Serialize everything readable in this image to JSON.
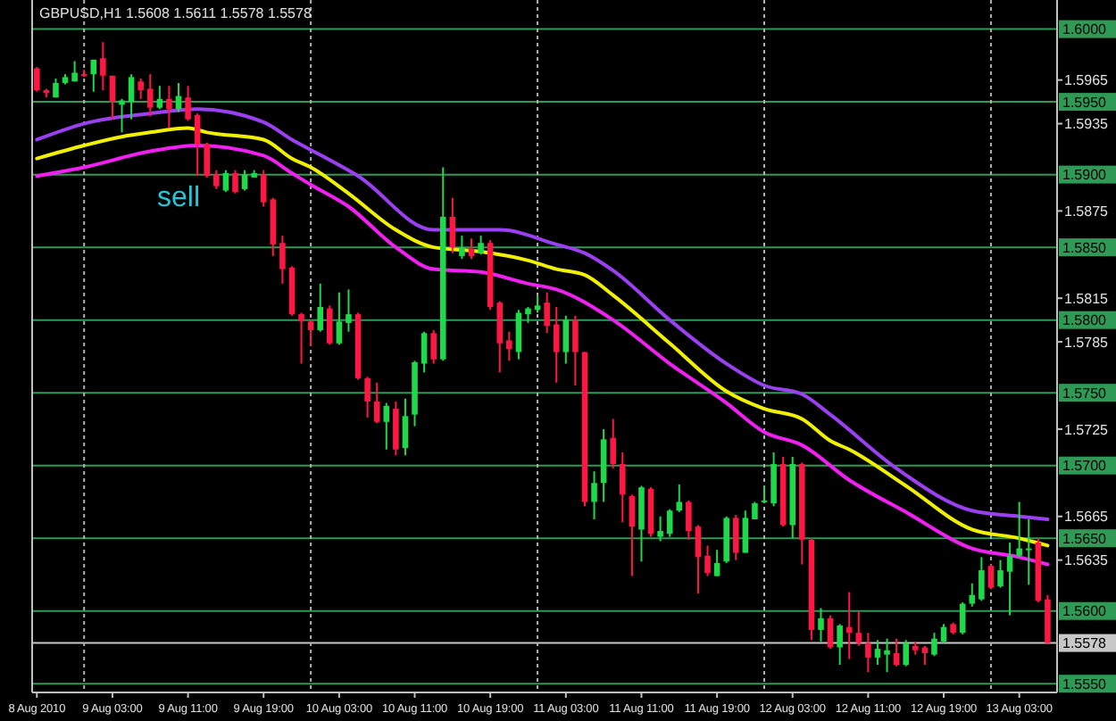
{
  "chart_data": {
    "type": "candlestick",
    "title": "GBPUSD,H1  1.5608 1.5611 1.5578 1.5578",
    "x": [
      "2010-08-08T19:00",
      "2010-08-08T20:00",
      "2010-08-08T21:00",
      "2010-08-08T22:00",
      "2010-08-08T23:00",
      "2010-08-09T00:00",
      "2010-08-09T01:00",
      "2010-08-09T02:00",
      "2010-08-09T03:00",
      "2010-08-09T04:00",
      "2010-08-09T05:00",
      "2010-08-09T06:00",
      "2010-08-09T07:00",
      "2010-08-09T08:00",
      "2010-08-09T09:00",
      "2010-08-09T10:00",
      "2010-08-09T11:00",
      "2010-08-09T12:00",
      "2010-08-09T13:00",
      "2010-08-09T14:00",
      "2010-08-09T15:00",
      "2010-08-09T16:00",
      "2010-08-09T17:00",
      "2010-08-09T18:00",
      "2010-08-09T19:00",
      "2010-08-09T20:00",
      "2010-08-09T21:00",
      "2010-08-09T22:00",
      "2010-08-09T23:00",
      "2010-08-10T00:00",
      "2010-08-10T01:00",
      "2010-08-10T02:00",
      "2010-08-10T03:00",
      "2010-08-10T04:00",
      "2010-08-10T05:00",
      "2010-08-10T06:00",
      "2010-08-10T07:00",
      "2010-08-10T08:00",
      "2010-08-10T09:00",
      "2010-08-10T10:00",
      "2010-08-10T11:00",
      "2010-08-10T12:00",
      "2010-08-10T13:00",
      "2010-08-10T14:00",
      "2010-08-10T15:00",
      "2010-08-10T16:00",
      "2010-08-10T17:00",
      "2010-08-10T18:00",
      "2010-08-10T19:00",
      "2010-08-10T20:00",
      "2010-08-10T21:00",
      "2010-08-10T22:00",
      "2010-08-10T23:00",
      "2010-08-11T00:00",
      "2010-08-11T01:00",
      "2010-08-11T02:00",
      "2010-08-11T03:00",
      "2010-08-11T04:00",
      "2010-08-11T05:00",
      "2010-08-11T06:00",
      "2010-08-11T07:00",
      "2010-08-11T08:00",
      "2010-08-11T09:00",
      "2010-08-11T10:00",
      "2010-08-11T11:00",
      "2010-08-11T12:00",
      "2010-08-11T13:00",
      "2010-08-11T14:00",
      "2010-08-11T15:00",
      "2010-08-11T16:00",
      "2010-08-11T17:00",
      "2010-08-11T18:00",
      "2010-08-11T19:00",
      "2010-08-11T20:00",
      "2010-08-11T21:00",
      "2010-08-11T22:00",
      "2010-08-11T23:00",
      "2010-08-12T00:00",
      "2010-08-12T01:00",
      "2010-08-12T02:00",
      "2010-08-12T03:00",
      "2010-08-12T04:00",
      "2010-08-12T05:00",
      "2010-08-12T06:00",
      "2010-08-12T07:00",
      "2010-08-12T08:00",
      "2010-08-12T09:00",
      "2010-08-12T10:00",
      "2010-08-12T11:00",
      "2010-08-12T12:00",
      "2010-08-12T13:00",
      "2010-08-12T14:00",
      "2010-08-12T15:00",
      "2010-08-12T16:00",
      "2010-08-12T17:00",
      "2010-08-12T18:00",
      "2010-08-12T19:00",
      "2010-08-12T20:00",
      "2010-08-12T21:00",
      "2010-08-12T22:00",
      "2010-08-12T23:00",
      "2010-08-13T00:00",
      "2010-08-13T01:00",
      "2010-08-13T02:00",
      "2010-08-13T03:00",
      "2010-08-13T04:00",
      "2010-08-13T05:00",
      "2010-08-13T06:00"
    ],
    "ohlc": [
      [
        1.5973,
        1.5974,
        1.5957,
        1.5958
      ],
      [
        1.5958,
        1.5959,
        1.5953,
        1.5956
      ],
      [
        1.5953,
        1.5966,
        1.5953,
        1.5963
      ],
      [
        1.5963,
        1.5969,
        1.5962,
        1.5967
      ],
      [
        1.5964,
        1.5978,
        1.5964,
        1.597
      ],
      [
        1.5969,
        1.5972,
        1.5967,
        1.5968
      ],
      [
        1.5969,
        1.5979,
        1.5957,
        1.5979
      ],
      [
        1.598,
        1.5991,
        1.5958,
        1.5968
      ],
      [
        1.5968,
        1.5968,
        1.5938,
        1.595
      ],
      [
        1.5948,
        1.5952,
        1.5929,
        1.5951
      ],
      [
        1.595,
        1.5969,
        1.5938,
        1.5967
      ],
      [
        1.5964,
        1.5966,
        1.5952,
        1.5958
      ],
      [
        1.5959,
        1.5969,
        1.594,
        1.5946
      ],
      [
        1.5946,
        1.5961,
        1.5945,
        1.5952
      ],
      [
        1.5952,
        1.5961,
        1.5932,
        1.5945
      ],
      [
        1.5945,
        1.5963,
        1.5943,
        1.5954
      ],
      [
        1.5953,
        1.5961,
        1.5937,
        1.5938
      ],
      [
        1.5941,
        1.5942,
        1.5899,
        1.5921
      ],
      [
        1.5921,
        1.5922,
        1.5898,
        1.5899
      ],
      [
        1.59,
        1.5903,
        1.589,
        1.5892
      ],
      [
        1.5889,
        1.5903,
        1.5888,
        1.5901
      ],
      [
        1.5901,
        1.5903,
        1.5887,
        1.5888
      ],
      [
        1.589,
        1.5903,
        1.5889,
        1.59
      ],
      [
        1.5898,
        1.5903,
        1.5898,
        1.5901
      ],
      [
        1.59,
        1.5903,
        1.5878,
        1.5881
      ],
      [
        1.5883,
        1.5884,
        1.5844,
        1.5852
      ],
      [
        1.5853,
        1.5858,
        1.5825,
        1.5835
      ],
      [
        1.5836,
        1.5837,
        1.5803,
        1.5804
      ],
      [
        1.5804,
        1.5805,
        1.577,
        1.5799
      ],
      [
        1.5799,
        1.58,
        1.5782,
        1.5793
      ],
      [
        1.5793,
        1.5825,
        1.5792,
        1.5809
      ],
      [
        1.5808,
        1.581,
        1.5783,
        1.5784
      ],
      [
        1.5784,
        1.5819,
        1.5783,
        1.5799
      ],
      [
        1.5798,
        1.5821,
        1.5792,
        1.5804
      ],
      [
        1.5804,
        1.5805,
        1.5759,
        1.576
      ],
      [
        1.576,
        1.5761,
        1.5733,
        1.5744
      ],
      [
        1.5744,
        1.5757,
        1.5729,
        1.573
      ],
      [
        1.573,
        1.5743,
        1.5711,
        1.5741
      ],
      [
        1.5739,
        1.5744,
        1.5707,
        1.5711
      ],
      [
        1.5712,
        1.5746,
        1.5707,
        1.5734
      ],
      [
        1.5735,
        1.5772,
        1.5727,
        1.5771
      ],
      [
        1.577,
        1.5792,
        1.5764,
        1.5791
      ],
      [
        1.5791,
        1.5793,
        1.577,
        1.5773
      ],
      [
        1.5773,
        1.5905,
        1.5772,
        1.5871
      ],
      [
        1.5871,
        1.5884,
        1.5846,
        1.585
      ],
      [
        1.5844,
        1.5858,
        1.5842,
        1.585
      ],
      [
        1.5849,
        1.5856,
        1.5842,
        1.5844
      ],
      [
        1.5846,
        1.5858,
        1.5845,
        1.5853
      ],
      [
        1.5853,
        1.5855,
        1.5807,
        1.5809
      ],
      [
        1.5812,
        1.5813,
        1.5764,
        1.5784
      ],
      [
        1.5786,
        1.5792,
        1.5772,
        1.578
      ],
      [
        1.5778,
        1.5807,
        1.5773,
        1.5805
      ],
      [
        1.5804,
        1.5809,
        1.5798,
        1.5808
      ],
      [
        1.5807,
        1.5817,
        1.5805,
        1.581
      ],
      [
        1.5812,
        1.5819,
        1.5791,
        1.5796
      ],
      [
        1.5797,
        1.5809,
        1.5757,
        1.5778
      ],
      [
        1.5778,
        1.5803,
        1.577,
        1.58
      ],
      [
        1.58,
        1.5803,
        1.5755,
        1.5778
      ],
      [
        1.5778,
        1.5778,
        1.5672,
        1.5675
      ],
      [
        1.5675,
        1.5696,
        1.5663,
        1.5688
      ],
      [
        1.5688,
        1.5725,
        1.5675,
        1.5718
      ],
      [
        1.5719,
        1.5732,
        1.5698,
        1.5701
      ],
      [
        1.5701,
        1.5709,
        1.5661,
        1.568
      ],
      [
        1.5679,
        1.568,
        1.5624,
        1.5658
      ],
      [
        1.5656,
        1.5686,
        1.5634,
        1.5685
      ],
      [
        1.5684,
        1.5685,
        1.5651,
        1.5653
      ],
      [
        1.5651,
        1.5665,
        1.5648,
        1.5655
      ],
      [
        1.5653,
        1.567,
        1.5651,
        1.5669
      ],
      [
        1.5669,
        1.5687,
        1.5668,
        1.5675
      ],
      [
        1.5675,
        1.5676,
        1.5649,
        1.5655
      ],
      [
        1.5658,
        1.5659,
        1.5612,
        1.5637
      ],
      [
        1.5638,
        1.5645,
        1.5624,
        1.5626
      ],
      [
        1.5624,
        1.5642,
        1.5624,
        1.5633
      ],
      [
        1.5634,
        1.5665,
        1.5633,
        1.5664
      ],
      [
        1.5664,
        1.5666,
        1.5635,
        1.564
      ],
      [
        1.564,
        1.5669,
        1.564,
        1.5664
      ],
      [
        1.5663,
        1.5675,
        1.5663,
        1.5674
      ],
      [
        1.5675,
        1.5686,
        1.5674,
        1.5676
      ],
      [
        1.5674,
        1.5709,
        1.5672,
        1.5701
      ],
      [
        1.5701,
        1.5706,
        1.5658,
        1.5659
      ],
      [
        1.5659,
        1.5706,
        1.565,
        1.5701
      ],
      [
        1.5701,
        1.5702,
        1.5632,
        1.5649
      ],
      [
        1.5649,
        1.565,
        1.558,
        1.5587
      ],
      [
        1.5587,
        1.5602,
        1.5579,
        1.5595
      ],
      [
        1.5595,
        1.5597,
        1.5574,
        1.5575
      ],
      [
        1.5575,
        1.5591,
        1.5563,
        1.559
      ],
      [
        1.5589,
        1.5613,
        1.5567,
        1.5585
      ],
      [
        1.5585,
        1.56,
        1.5576,
        1.5578
      ],
      [
        1.5578,
        1.5585,
        1.5558,
        1.5568
      ],
      [
        1.5568,
        1.558,
        1.5563,
        1.5574
      ],
      [
        1.557,
        1.5581,
        1.5558,
        1.5573
      ],
      [
        1.5571,
        1.5581,
        1.5562,
        1.5563
      ],
      [
        1.5563,
        1.558,
        1.5562,
        1.5578
      ],
      [
        1.5576,
        1.5579,
        1.557,
        1.5573
      ],
      [
        1.5575,
        1.5576,
        1.5563,
        1.5571
      ],
      [
        1.557,
        1.5585,
        1.5569,
        1.5581
      ],
      [
        1.5579,
        1.5591,
        1.5578,
        1.5589
      ],
      [
        1.5591,
        1.5592,
        1.5584,
        1.5585
      ],
      [
        1.5585,
        1.5606,
        1.5584,
        1.5605
      ],
      [
        1.5605,
        1.5619,
        1.5603,
        1.5611
      ],
      [
        1.5608,
        1.5637,
        1.5607,
        1.5628
      ],
      [
        1.5631,
        1.5632,
        1.5615,
        1.5616
      ],
      [
        1.5617,
        1.5635,
        1.5616,
        1.5628
      ],
      [
        1.5627,
        1.5647,
        1.5597,
        1.5638
      ],
      [
        1.5638,
        1.5675,
        1.5637,
        1.5643
      ],
      [
        1.5642,
        1.5663,
        1.5618,
        1.5643
      ],
      [
        1.5647,
        1.565,
        1.5606,
        1.5607
      ],
      [
        1.5608,
        1.5611,
        1.5578,
        1.5578
      ]
    ],
    "colors": [
      "#ff1744",
      "#ff1744",
      "#1ed94a",
      "#1ed94a",
      "#1ed94a",
      "#ff1744",
      "#1ed94a",
      "#ff1744",
      "#ff1744",
      "#1ed94a",
      "#1ed94a",
      "#ff1744",
      "#ff1744",
      "#1ed94a",
      "#ff1744",
      "#1ed94a",
      "#ff1744",
      "#ff1744",
      "#ff1744",
      "#ff1744",
      "#1ed94a",
      "#ff1744",
      "#1ed94a",
      "#1ed94a",
      "#ff1744",
      "#ff1744",
      "#ff1744",
      "#ff1744",
      "#ff1744",
      "#ff1744",
      "#1ed94a",
      "#ff1744",
      "#1ed94a",
      "#1ed94a",
      "#ff1744",
      "#ff1744",
      "#ff1744",
      "#1ed94a",
      "#ff1744",
      "#1ed94a",
      "#1ed94a",
      "#1ed94a",
      "#ff1744",
      "#1ed94a",
      "#ff1744",
      "#1ed94a",
      "#ff1744",
      "#1ed94a",
      "#ff1744",
      "#ff1744",
      "#ff1744",
      "#1ed94a",
      "#1ed94a",
      "#1ed94a",
      "#ff1744",
      "#ff1744",
      "#1ed94a",
      "#ff1744",
      "#ff1744",
      "#1ed94a",
      "#1ed94a",
      "#ff1744",
      "#ff1744",
      "#ff1744",
      "#1ed94a",
      "#ff1744",
      "#1ed94a",
      "#1ed94a",
      "#1ed94a",
      "#ff1744",
      "#ff1744",
      "#ff1744",
      "#1ed94a",
      "#1ed94a",
      "#ff1744",
      "#1ed94a",
      "#1ed94a",
      "#1ed94a",
      "#1ed94a",
      "#ff1744",
      "#1ed94a",
      "#ff1744",
      "#ff1744",
      "#1ed94a",
      "#ff1744",
      "#1ed94a",
      "#ff1744",
      "#ff1744",
      "#ff1744",
      "#1ed94a",
      "#1ed94a",
      "#ff1744",
      "#1ed94a",
      "#ff1744",
      "#ff1744",
      "#1ed94a",
      "#1ed94a",
      "#ff1744",
      "#1ed94a",
      "#1ed94a",
      "#1ed94a",
      "#ff1744",
      "#1ed94a",
      "#1ed94a",
      "#1ed94a",
      "#1ed94a",
      "#ff1744",
      "#ff1744"
    ],
    "series": [
      {
        "type": "line",
        "color": "#9b40f0",
        "x": [
          "2010-08-08T19:00",
          "2010-08-09T00:00",
          "2010-08-09T07:00",
          "2010-08-09T12:00",
          "2010-08-09T19:00",
          "2010-08-09T22:00",
          "2010-08-10T00:00",
          "2010-08-10T05:00",
          "2010-08-10T13:00",
          "2010-08-10T20:00",
          "2010-08-11T02:00",
          "2010-08-11T05:00",
          "2010-08-11T08:00",
          "2010-08-11T14:00",
          "2010-08-11T20:00",
          "2010-08-12T00:00",
          "2010-08-12T04:00",
          "2010-08-12T07:00",
          "2010-08-12T14:00",
          "2010-08-12T22:00",
          "2010-08-13T03:00",
          "2010-08-13T06:00"
        ],
        "values": [
          1.5924,
          1.5935,
          1.5942,
          1.5945,
          1.5936,
          1.5924,
          1.5917,
          1.5899,
          1.5862,
          1.5862,
          1.5852,
          1.5846,
          1.5834,
          1.58,
          1.577,
          1.5755,
          1.5749,
          1.5735,
          1.5698,
          1.5669,
          1.5665,
          1.5663
        ]
      },
      {
        "type": "line",
        "color": "#f0f000",
        "x": [
          "2010-08-08T19:00",
          "2010-08-09T00:00",
          "2010-08-09T04:00",
          "2010-08-09T07:00",
          "2010-08-09T11:00",
          "2010-08-09T13:00",
          "2010-08-09T19:00",
          "2010-08-09T22:00",
          "2010-08-10T00:00",
          "2010-08-10T04:00",
          "2010-08-10T09:00",
          "2010-08-10T13:00",
          "2010-08-10T18:00",
          "2010-08-10T23:00",
          "2010-08-11T02:00",
          "2010-08-11T05:00",
          "2010-08-11T08:00",
          "2010-08-11T14:00",
          "2010-08-11T20:00",
          "2010-08-12T00:00",
          "2010-08-12T04:00",
          "2010-08-12T07:00",
          "2010-08-12T09:00",
          "2010-08-12T15:00",
          "2010-08-12T22:00",
          "2010-08-13T03:00",
          "2010-08-13T06:00"
        ],
        "values": [
          1.5911,
          1.592,
          1.5926,
          1.5929,
          1.5932,
          1.5929,
          1.5924,
          1.5911,
          1.5905,
          1.5887,
          1.5862,
          1.585,
          1.5847,
          1.5841,
          1.5835,
          1.5831,
          1.5817,
          1.5784,
          1.5751,
          1.5739,
          1.5732,
          1.5717,
          1.5711,
          1.5686,
          1.5656,
          1.565,
          1.5645
        ]
      },
      {
        "type": "line",
        "color": "#f020f0",
        "x": [
          "2010-08-08T19:00",
          "2010-08-09T00:00",
          "2010-08-09T07:00",
          "2010-08-09T12:00",
          "2010-08-09T19:00",
          "2010-08-09T22:00",
          "2010-08-10T00:00",
          "2010-08-10T04:00",
          "2010-08-10T09:00",
          "2010-08-10T13:00",
          "2010-08-10T18:00",
          "2010-08-10T23:00",
          "2010-08-11T02:00",
          "2010-08-11T08:00",
          "2010-08-11T14:00",
          "2010-08-11T20:00",
          "2010-08-12T00:00",
          "2010-08-12T04:00",
          "2010-08-12T09:00",
          "2010-08-12T15:00",
          "2010-08-12T22:00",
          "2010-08-13T03:00",
          "2010-08-13T06:00"
        ],
        "values": [
          1.5899,
          1.5905,
          1.5916,
          1.592,
          1.5913,
          1.5901,
          1.5893,
          1.5878,
          1.585,
          1.5835,
          1.5833,
          1.5825,
          1.5821,
          1.58,
          1.577,
          1.5743,
          1.5723,
          1.5714,
          1.569,
          1.5668,
          1.5643,
          1.5637,
          1.5632
        ]
      }
    ],
    "xlim": [
      "2010-08-08T18:30",
      "2010-08-13T07:00"
    ],
    "xticks": [
      {
        "value": "2010-08-08T19:00",
        "label": "8 Aug 2010"
      },
      {
        "value": "2010-08-09T03:00",
        "label": "9 Aug 03:00"
      },
      {
        "value": "2010-08-09T11:00",
        "label": "9 Aug 11:00"
      },
      {
        "value": "2010-08-09T19:00",
        "label": "9 Aug 19:00"
      },
      {
        "value": "2010-08-10T03:00",
        "label": "10 Aug 03:00"
      },
      {
        "value": "2010-08-10T11:00",
        "label": "10 Aug 11:00"
      },
      {
        "value": "2010-08-10T19:00",
        "label": "10 Aug 19:00"
      },
      {
        "value": "2010-08-11T03:00",
        "label": "11 Aug 03:00"
      },
      {
        "value": "2010-08-11T11:00",
        "label": "11 Aug 11:00"
      },
      {
        "value": "2010-08-11T19:00",
        "label": "11 Aug 19:00"
      },
      {
        "value": "2010-08-12T03:00",
        "label": "12 Aug 03:00"
      },
      {
        "value": "2010-08-12T11:00",
        "label": "12 Aug 11:00"
      },
      {
        "value": "2010-08-12T19:00",
        "label": "12 Aug 19:00"
      },
      {
        "value": "2010-08-13T03:00",
        "label": "13 Aug 03:00"
      }
    ],
    "ylim": [
      1.5544,
      1.602
    ],
    "yticks": [
      1.5965,
      1.5935,
      1.5875,
      1.5815,
      1.5785,
      1.5725,
      1.5665,
      1.5635
    ],
    "ref_lines": [
      {
        "axis": "y",
        "value": 1.6,
        "label": "1.6000",
        "color": "#2e9a55"
      },
      {
        "axis": "y",
        "value": 1.595,
        "label": "1.5950",
        "color": "#2e9a55"
      },
      {
        "axis": "y",
        "value": 1.59,
        "label": "1.5900",
        "color": "#2e9a55"
      },
      {
        "axis": "y",
        "value": 1.585,
        "label": "1.5850",
        "color": "#2e9a55"
      },
      {
        "axis": "y",
        "value": 1.58,
        "label": "1.5800",
        "color": "#2e9a55"
      },
      {
        "axis": "y",
        "value": 1.575,
        "label": "1.5750",
        "color": "#2e9a55"
      },
      {
        "axis": "y",
        "value": 1.57,
        "label": "1.5700",
        "color": "#2e9a55"
      },
      {
        "axis": "y",
        "value": 1.565,
        "label": "1.5650",
        "color": "#2e9a55"
      },
      {
        "axis": "y",
        "value": 1.56,
        "label": "1.5600",
        "color": "#2e9a55"
      },
      {
        "axis": "y",
        "value": 1.5578,
        "label": "1.5578",
        "color": "#c8c8c8"
      },
      {
        "axis": "y",
        "value": 1.555,
        "label": "1.5550",
        "color": "#2e9a55"
      },
      {
        "axis": "x",
        "value": "2010-08-09T00:00",
        "color": "#b0b0b0",
        "line_style": "dotted"
      },
      {
        "axis": "x",
        "value": "2010-08-10T00:00",
        "color": "#b0b0b0",
        "line_style": "dotted"
      },
      {
        "axis": "x",
        "value": "2010-08-11T00:00",
        "color": "#b0b0b0",
        "line_style": "dotted"
      },
      {
        "axis": "x",
        "value": "2010-08-12T00:00",
        "color": "#b0b0b0",
        "line_style": "dotted"
      },
      {
        "axis": "x",
        "value": "2010-08-13T00:00",
        "color": "#b0b0b0",
        "line_style": "dotted"
      }
    ],
    "annotations": [
      "sell"
    ]
  }
}
